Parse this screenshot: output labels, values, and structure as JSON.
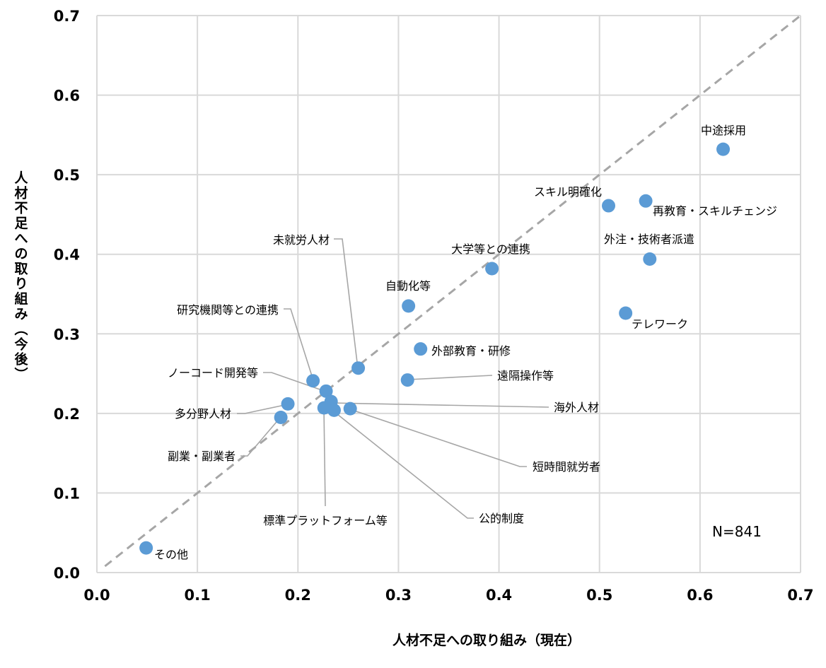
{
  "chart_data": {
    "type": "scatter",
    "xlabel": "人材不足への取り組み（現在）",
    "ylabel": "人材不足への取り組み（今後）",
    "xlim": [
      0.0,
      0.7
    ],
    "ylim": [
      0.0,
      0.7
    ],
    "xticks": [
      "0.0",
      "0.1",
      "0.2",
      "0.3",
      "0.4",
      "0.5",
      "0.6",
      "0.7"
    ],
    "yticks": [
      "0.0",
      "0.1",
      "0.2",
      "0.3",
      "0.4",
      "0.5",
      "0.6",
      "0.7"
    ],
    "grid": true,
    "reference_line": "y = x (dashed)",
    "annotation": "N=841",
    "marker_color": "#5B9BD5",
    "points": [
      {
        "label": "中途採用",
        "x": 0.623,
        "y": 0.532
      },
      {
        "label": "再教育・スキルチェンジ",
        "x": 0.546,
        "y": 0.467
      },
      {
        "label": "スキル明確化",
        "x": 0.509,
        "y": 0.461
      },
      {
        "label": "外注・技術者派遣",
        "x": 0.55,
        "y": 0.394
      },
      {
        "label": "テレワーク",
        "x": 0.526,
        "y": 0.326
      },
      {
        "label": "大学等との連携",
        "x": 0.393,
        "y": 0.382
      },
      {
        "label": "自動化等",
        "x": 0.31,
        "y": 0.335
      },
      {
        "label": "外部教育・研修",
        "x": 0.322,
        "y": 0.281
      },
      {
        "label": "遠隔操作等",
        "x": 0.309,
        "y": 0.242
      },
      {
        "label": "未就労人材",
        "x": 0.26,
        "y": 0.257
      },
      {
        "label": "研究機関等との連携",
        "x": 0.215,
        "y": 0.241
      },
      {
        "label": "ノーコード開発等",
        "x": 0.228,
        "y": 0.228
      },
      {
        "label": "海外人材",
        "x": 0.233,
        "y": 0.215
      },
      {
        "label": "短時間就労者",
        "x": 0.252,
        "y": 0.206
      },
      {
        "label": "公的制度",
        "x": 0.236,
        "y": 0.204
      },
      {
        "label": "標準プラットフォーム等",
        "x": 0.226,
        "y": 0.207
      },
      {
        "label": "多分野人材",
        "x": 0.19,
        "y": 0.212
      },
      {
        "label": "副業・副業者",
        "x": 0.183,
        "y": 0.195
      },
      {
        "label": "その他",
        "x": 0.049,
        "y": 0.031
      }
    ]
  }
}
